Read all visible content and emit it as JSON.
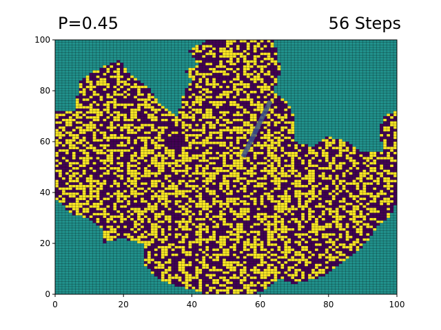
{
  "chart_data": {
    "type": "heatmap",
    "title_left": "P=0.45",
    "title_right": "56 Steps",
    "xlabel": "",
    "ylabel": "",
    "xlim": [
      0,
      100
    ],
    "ylim": [
      0,
      100
    ],
    "grid": true,
    "legend": "none",
    "x_ticks": [
      "0",
      "20",
      "40",
      "60",
      "80",
      "100"
    ],
    "y_ticks": [
      "0",
      "20",
      "40",
      "60",
      "80",
      "100"
    ],
    "x_tick_values": [
      0,
      20,
      40,
      60,
      80,
      100
    ],
    "y_tick_values": [
      0,
      20,
      40,
      60,
      80,
      100
    ],
    "grid_size": [
      100,
      100
    ],
    "state_colors": {
      "empty": "#21918c",
      "burnt": "#440154",
      "burning": "#fde725",
      "transition": "#3b528b",
      "gridline": "#000000"
    },
    "burnt_region_outline": [
      [
        0,
        72
      ],
      [
        6,
        72
      ],
      [
        7,
        84
      ],
      [
        12,
        88
      ],
      [
        15,
        90
      ],
      [
        19,
        92
      ],
      [
        22,
        86
      ],
      [
        27,
        82
      ],
      [
        31,
        74
      ],
      [
        36,
        70
      ],
      [
        38,
        80
      ],
      [
        40,
        84
      ],
      [
        38,
        88
      ],
      [
        42,
        90
      ],
      [
        39,
        96
      ],
      [
        45,
        100
      ],
      [
        64,
        100
      ],
      [
        65,
        94
      ],
      [
        66,
        88
      ],
      [
        64,
        80
      ],
      [
        68,
        76
      ],
      [
        70,
        70
      ],
      [
        70,
        60
      ],
      [
        76,
        58
      ],
      [
        80,
        62
      ],
      [
        86,
        60
      ],
      [
        90,
        56
      ],
      [
        96,
        56
      ],
      [
        100,
        58
      ],
      [
        100,
        36
      ],
      [
        98,
        30
      ],
      [
        94,
        26
      ],
      [
        92,
        22
      ],
      [
        88,
        16
      ],
      [
        84,
        12
      ],
      [
        80,
        8
      ],
      [
        76,
        6
      ],
      [
        70,
        4
      ],
      [
        66,
        6
      ],
      [
        62,
        2
      ],
      [
        58,
        0
      ],
      [
        44,
        0
      ],
      [
        40,
        2
      ],
      [
        34,
        4
      ],
      [
        30,
        6
      ],
      [
        26,
        12
      ],
      [
        26,
        20
      ],
      [
        20,
        22
      ],
      [
        14,
        20
      ],
      [
        14,
        26
      ],
      [
        10,
        30
      ],
      [
        4,
        32
      ],
      [
        2,
        36
      ],
      [
        0,
        38
      ]
    ],
    "right_edge_patch": [
      [
        96,
        56
      ],
      [
        100,
        58
      ],
      [
        100,
        72
      ],
      [
        96,
        70
      ],
      [
        95,
        64
      ]
    ],
    "burning_fraction_inside": 0.45,
    "streak_line": [
      [
        55,
        54
      ],
      [
        63,
        76
      ]
    ],
    "random_seed": 2023
  }
}
